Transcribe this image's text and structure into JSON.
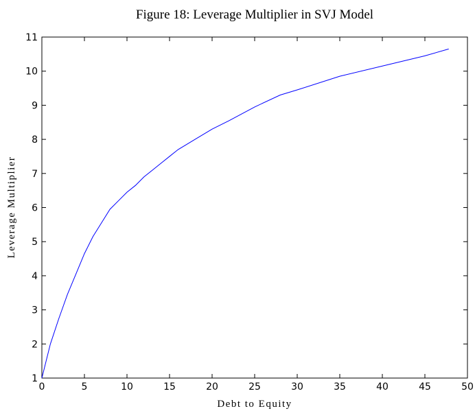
{
  "chart_data": {
    "type": "line",
    "title": "Figure 18: Leverage Multiplier in SVJ Model",
    "x_label": "Debt to Equity",
    "y_label": "Leverage Multiplier",
    "x": [
      0,
      0.5,
      1,
      2,
      2.5,
      3,
      4,
      5,
      6,
      7,
      8,
      9,
      10,
      11,
      12,
      13,
      14,
      15,
      16,
      18,
      20,
      22,
      25,
      28,
      30,
      35,
      40,
      45,
      47.8
    ],
    "series": [
      {
        "name": "Leverage Multiplier",
        "color": "#0000ff",
        "values": [
          1,
          1.5,
          2.0,
          2.75,
          3.1,
          3.45,
          4.05,
          4.65,
          5.15,
          5.55,
          5.95,
          6.2,
          6.45,
          6.65,
          6.9,
          7.1,
          7.3,
          7.5,
          7.7,
          8.0,
          8.3,
          8.55,
          8.95,
          9.3,
          9.45,
          9.85,
          10.15,
          10.45,
          10.65
        ]
      }
    ],
    "xlim": [
      0,
      50
    ],
    "xticks": [
      0,
      5,
      10,
      15,
      20,
      25,
      30,
      35,
      40,
      45,
      50
    ],
    "ylim": [
      1,
      11
    ],
    "yticks": [
      1,
      2,
      3,
      4,
      5,
      6,
      7,
      8,
      9,
      10,
      11
    ]
  }
}
